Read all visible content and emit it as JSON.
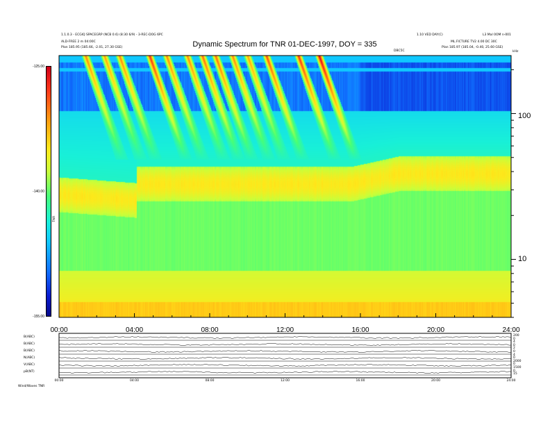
{
  "header": {
    "top_left_line1": "1.1.0.3 - ECGIQ SPACEGRP (NCB 0.6) (8:30 6/9) - 3-REC-DOG 6PC",
    "top_left_line2": "ALD-FREE 2 m 04:00C",
    "top_left_line3": "Plan     185.95 (185.66, -2.01, 27.30 GSE)",
    "top_right_col1_line1": "1.10 VED DAY(C)",
    "top_right_col2_line1": "L3 Mal 0OM n-001",
    "top_right_line2": "ML.FICTURE TV2 4.00 DC 30C",
    "top_right_line3": "Plan     185.97 (185.04, -0.40, 25.60 GSE)",
    "top_right_small_label": "DBC5C",
    "unit_label": "kHz"
  },
  "colorbar": {
    "label": "TNR",
    "ticks": [
      "-125.00",
      "-140.00",
      "-155.00"
    ]
  },
  "chart_data": {
    "type": "heatmap",
    "title": "Dynamic Spectrum for TNR 01-DEC-1997, DOY = 335",
    "x_ticks": [
      "00:00",
      "04:00",
      "08:00",
      "12:00",
      "16:00",
      "20:00",
      "24:00"
    ],
    "x_range": [
      0,
      24
    ],
    "y_scale": "log",
    "y_range_khz": [
      4,
      250
    ],
    "y_ticks_right": [
      "100",
      "10"
    ],
    "y_ticks_right_values": [
      100,
      10
    ],
    "colorbar_range_db": [
      -155,
      -125
    ],
    "bursts": [
      {
        "start_hour": 1.4,
        "peak_db": -131
      },
      {
        "start_hour": 2.4,
        "peak_db": -132
      },
      {
        "start_hour": 3.2,
        "peak_db": -131
      },
      {
        "start_hour": 4.8,
        "peak_db": -128
      },
      {
        "start_hour": 5.7,
        "peak_db": -131
      },
      {
        "start_hour": 6.8,
        "peak_db": -131
      },
      {
        "start_hour": 7.6,
        "peak_db": -130
      },
      {
        "start_hour": 8.3,
        "peak_db": -130
      },
      {
        "start_hour": 9.2,
        "peak_db": -131
      },
      {
        "start_hour": 10.0,
        "peak_db": -132
      },
      {
        "start_hour": 11.0,
        "peak_db": -129
      },
      {
        "start_hour": 12.7,
        "peak_db": -128
      },
      {
        "start_hour": 13.8,
        "peak_db": -126
      }
    ]
  },
  "bottom_panels": {
    "labels": [
      "B(ABC)",
      "B(ABC)",
      "B(ABC)",
      "N(ABC)",
      "V(ABC)",
      "pB(NT)"
    ],
    "right_ticks": [
      "200",
      "0",
      "4",
      "0",
      "2",
      "0",
      "4",
      "0",
      "2000",
      "0",
      "1500",
      "0",
      "15"
    ],
    "x_ticks": [
      "00:00",
      "04:00",
      "08:00",
      "12:00",
      "16:00",
      "20:00",
      "24:00"
    ],
    "footer": "Wind/Waves TNR"
  }
}
